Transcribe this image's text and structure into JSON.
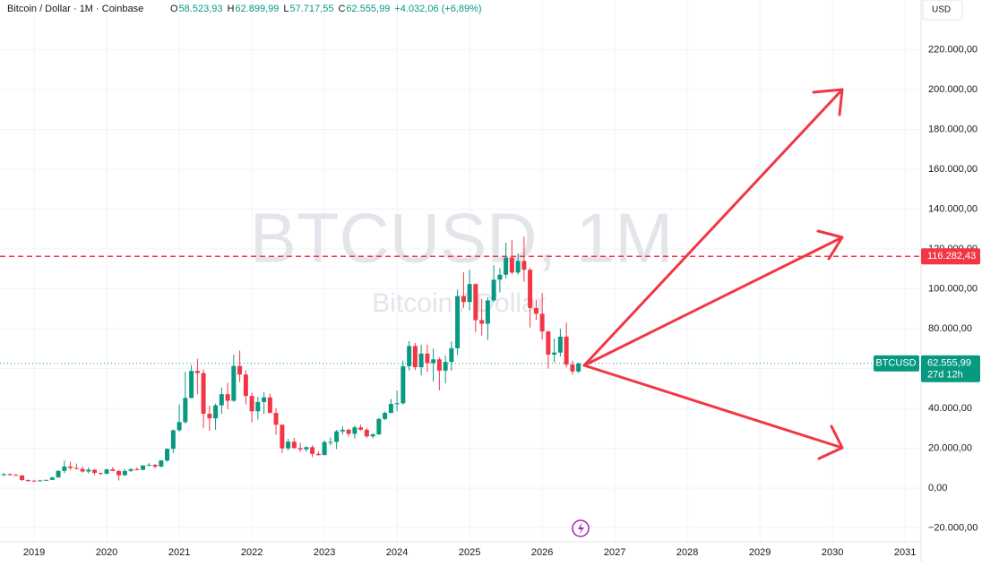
{
  "chart_data": {
    "type": "candlestick",
    "header": {
      "symbol": "Bitcoin / Dollar · 1M · Coinbase",
      "o_label": "O",
      "o": "58.523,93",
      "h_label": "H",
      "h": "62.899,99",
      "l_label": "L",
      "l": "57.717,55",
      "c_label": "C",
      "c": "62.555,99",
      "change": "+4.032,06 (+6,89%)"
    },
    "watermark": "BTCUSD, 1M",
    "watermark_sub": "Bitcoin / Dollar",
    "currency": "USD",
    "up_color": "#089981",
    "down_color": "#f23645",
    "grid": true,
    "x": [
      2018.583,
      2018.667,
      2018.75,
      2018.833,
      2018.917,
      2019,
      2019.083,
      2019.167,
      2019.25,
      2019.333,
      2019.417,
      2019.5,
      2019.583,
      2019.667,
      2019.75,
      2019.833,
      2019.917,
      2020,
      2020.083,
      2020.167,
      2020.25,
      2020.333,
      2020.417,
      2020.5,
      2020.583,
      2020.667,
      2020.75,
      2020.833,
      2020.917,
      2021,
      2021.083,
      2021.167,
      2021.25,
      2021.333,
      2021.417,
      2021.5,
      2021.583,
      2021.667,
      2021.75,
      2021.833,
      2021.917,
      2022,
      2022.083,
      2022.167,
      2022.25,
      2022.333,
      2022.417,
      2022.5,
      2022.583,
      2022.667,
      2022.75,
      2022.833,
      2022.917,
      2023,
      2023.083,
      2023.167,
      2023.25,
      2023.333,
      2023.417,
      2023.5,
      2023.583,
      2023.667,
      2023.75,
      2023.833,
      2023.917,
      2024,
      2024.083,
      2024.167,
      2024.25,
      2024.333,
      2024.417,
      2024.5,
      2024.583,
      2024.667,
      2024.75,
      2024.833,
      2024.917,
      2025,
      2025.083,
      2025.167,
      2025.25,
      2025.333,
      2025.417,
      2025.5,
      2025.583,
      2025.667,
      2025.75,
      2025.833,
      2025.917,
      2026,
      2026.083,
      2026.167,
      2026.25,
      2026.333,
      2026.417,
      2026.5
    ],
    "open": [
      7000,
      7000,
      6600,
      6300,
      4000,
      3700,
      3450,
      3850,
      4100,
      5300,
      8600,
      10800,
      10100,
      9600,
      8300,
      9200,
      7600,
      7200,
      9350,
      8550,
      6400,
      8600,
      9450,
      9140,
      11350,
      11650,
      10780,
      13800,
      19700,
      29000,
      33100,
      45200,
      58800,
      57700,
      37300,
      35000,
      41500,
      47100,
      43800,
      61300,
      57000,
      46200,
      38500,
      43200,
      45500,
      37700,
      31800,
      19900,
      23300,
      20050,
      19400,
      20500,
      17150,
      16550,
      23100,
      23150,
      28450,
      29250,
      27200,
      30450,
      29250,
      25950,
      26950,
      34650,
      37700,
      42250,
      42550,
      61150,
      71300,
      60650,
      67500,
      62700,
      64600,
      58950,
      63300,
      70200,
      96400,
      93400,
      102400,
      84300,
      82500,
      94200,
      104600,
      107100,
      115700,
      108200,
      114000,
      109600,
      90400,
      87500,
      78600,
      67000,
      68000,
      76000,
      62000,
      58523.93
    ],
    "high": [
      7500,
      7400,
      7100,
      6600,
      4300,
      4100,
      4200,
      4100,
      5600,
      9000,
      13800,
      13200,
      12300,
      10900,
      10400,
      9500,
      7700,
      9600,
      10500,
      9200,
      9500,
      10100,
      10400,
      11400,
      12500,
      12050,
      14100,
      19900,
      29300,
      41900,
      58300,
      61800,
      64900,
      59500,
      41300,
      42400,
      50500,
      52900,
      67000,
      69000,
      59100,
      47900,
      45800,
      48200,
      47400,
      40000,
      31900,
      24700,
      25200,
      22700,
      21000,
      21500,
      18400,
      23900,
      25300,
      29200,
      31000,
      29800,
      31400,
      31800,
      30200,
      27500,
      35200,
      38400,
      44700,
      48900,
      64000,
      73800,
      72800,
      71900,
      72000,
      70000,
      65600,
      66500,
      73600,
      99600,
      108300,
      109500,
      102700,
      95000,
      95700,
      111900,
      110500,
      123200,
      124500,
      117900,
      126200,
      110600,
      94600,
      97900,
      79000,
      75000,
      80000,
      83000,
      64000,
      62899.99
    ],
    "low": [
      5900,
      6100,
      6200,
      3600,
      3200,
      3400,
      3400,
      3700,
      4000,
      5300,
      7500,
      9000,
      9300,
      7700,
      7300,
      6500,
      6400,
      6900,
      8500,
      3800,
      6200,
      8100,
      8900,
      8900,
      11000,
      9900,
      10400,
      13200,
      17600,
      28100,
      32300,
      45000,
      47000,
      30000,
      28800,
      29300,
      37300,
      39600,
      43300,
      53300,
      42000,
      32900,
      34300,
      37200,
      37600,
      26700,
      17600,
      18800,
      19600,
      18100,
      18200,
      15500,
      16300,
      16500,
      21400,
      19500,
      26900,
      25800,
      24800,
      28900,
      25100,
      24900,
      26600,
      34100,
      37600,
      38500,
      41900,
      59000,
      59200,
      56500,
      58400,
      53500,
      49000,
      52500,
      58900,
      66800,
      90500,
      89200,
      78200,
      76600,
      74400,
      93400,
      98200,
      105200,
      107300,
      107200,
      103500,
      80600,
      84400,
      74600,
      60000,
      63000,
      66000,
      60500,
      57000,
      57717.55
    ],
    "close": [
      7000,
      6600,
      6300,
      4000,
      3700,
      3450,
      3850,
      4100,
      5300,
      8600,
      10800,
      10100,
      9600,
      8300,
      9200,
      7600,
      7200,
      9350,
      8550,
      6400,
      8600,
      9450,
      9140,
      11350,
      11650,
      10780,
      13800,
      19700,
      29000,
      33100,
      45200,
      58800,
      57700,
      37300,
      35000,
      41500,
      47100,
      43800,
      61300,
      57000,
      46200,
      38500,
      43200,
      45500,
      37700,
      31800,
      19900,
      23300,
      20050,
      19400,
      20500,
      17150,
      16550,
      23100,
      23150,
      28450,
      29250,
      27200,
      30450,
      29250,
      25950,
      26950,
      34650,
      37700,
      42250,
      42550,
      61150,
      71300,
      60650,
      67500,
      62700,
      64600,
      58950,
      63300,
      70200,
      96400,
      93400,
      102400,
      84300,
      82500,
      94200,
      104600,
      107100,
      115700,
      108200,
      114000,
      109600,
      90400,
      87500,
      78600,
      67000,
      68000,
      76000,
      62000,
      58524,
      62555.99
    ],
    "xlim": [
      2018.53,
      2031.22
    ],
    "xticks": [
      2019,
      2020,
      2021,
      2022,
      2023,
      2024,
      2025,
      2026,
      2027,
      2028,
      2029,
      2030,
      2031
    ],
    "ylim": [
      -27000,
      245000
    ],
    "yticks": [
      {
        "value": -20000,
        "label": "−20.000,00"
      },
      {
        "value": 0,
        "label": "0,00"
      },
      {
        "value": 20000,
        "label": "20.000,00"
      },
      {
        "value": 40000,
        "label": "40.000,00"
      },
      {
        "value": 60000,
        "label": "60.000,00"
      },
      {
        "value": 80000,
        "label": "80.000,00"
      },
      {
        "value": 100000,
        "label": "100.000,00"
      },
      {
        "value": 120000,
        "label": "120.000,00"
      },
      {
        "value": 140000,
        "label": "140.000,00"
      },
      {
        "value": 160000,
        "label": "160.000,00"
      },
      {
        "value": 180000,
        "label": "180.000,00"
      },
      {
        "value": 200000,
        "label": "200.000,00"
      },
      {
        "value": 220000,
        "label": "220.000,00"
      }
    ],
    "hline": {
      "value": 116282.43,
      "label": "116.282,43",
      "color": "#f23645"
    },
    "last_price": {
      "value": 62555.99,
      "label": "62.555,99",
      "symbol": "BTCUSD",
      "countdown": "27d 12h",
      "color": "#089981"
    }
  }
}
